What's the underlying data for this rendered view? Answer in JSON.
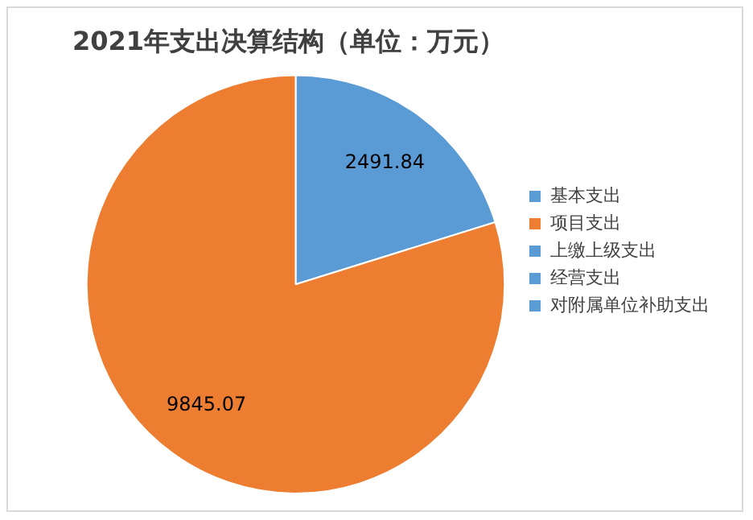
{
  "chart_data": {
    "type": "pie",
    "title": "2021年支出决算结构（单位：万元）",
    "categories": [
      "基本支出",
      "项目支出",
      "上缴上级支出",
      "经营支出",
      "对附属单位补助支出"
    ],
    "values": [
      2491.84,
      9845.07,
      0,
      0,
      0
    ],
    "colors": [
      "#5b9bd5",
      "#ed7d31",
      "#5b9bd5",
      "#5b9bd5",
      "#5b9bd5"
    ],
    "value_labels": [
      "2491.84",
      "9845.07",
      null,
      null,
      null
    ],
    "legend": "right"
  }
}
